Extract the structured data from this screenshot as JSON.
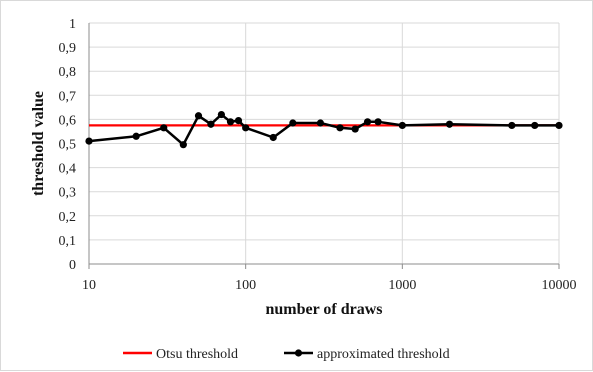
{
  "chart_data": {
    "type": "line",
    "xscale": "log",
    "xlim": [
      10,
      10000
    ],
    "ylim": [
      0,
      1
    ],
    "xticks": [
      "10",
      "100",
      "1000",
      "10000"
    ],
    "yticks": [
      "0",
      "0,1",
      "0,2",
      "0,3",
      "0,4",
      "0,5",
      "0,6",
      "0,7",
      "0,8",
      "0,9",
      "1"
    ],
    "xlabel": "number of draws",
    "ylabel": "threshold value",
    "grid": true,
    "legend_position": "bottom",
    "series": [
      {
        "name": "Otsu threshold",
        "color": "#ff0000",
        "marker": false,
        "x": [
          10,
          10000
        ],
        "y": [
          0.575,
          0.575
        ]
      },
      {
        "name": "approximated threshold",
        "color": "#000000",
        "marker": true,
        "x": [
          10,
          20,
          30,
          40,
          50,
          60,
          70,
          80,
          90,
          100,
          150,
          200,
          300,
          400,
          500,
          600,
          700,
          1000,
          2000,
          5000,
          7000,
          10000
        ],
        "y": [
          0.51,
          0.53,
          0.565,
          0.495,
          0.615,
          0.58,
          0.62,
          0.59,
          0.595,
          0.565,
          0.525,
          0.585,
          0.585,
          0.565,
          0.56,
          0.59,
          0.59,
          0.575,
          0.58,
          0.575,
          0.575,
          0.575
        ]
      }
    ]
  }
}
